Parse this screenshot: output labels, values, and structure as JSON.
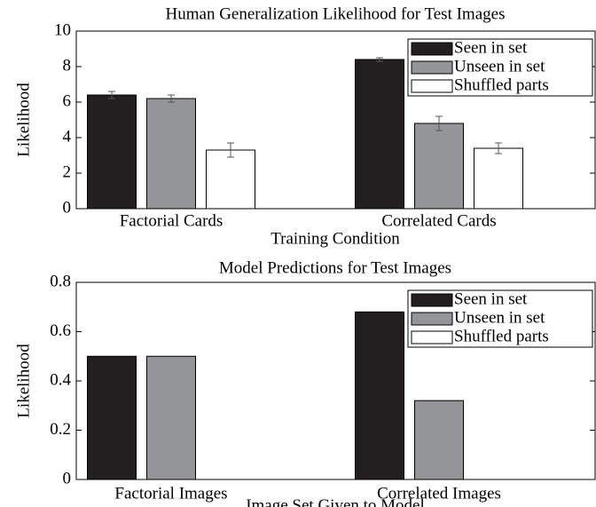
{
  "chart_data": [
    {
      "type": "bar",
      "title": "Human Generalization Likelihood for Test Images",
      "xlabel": "Training Condition",
      "ylabel": "Likelihood",
      "categories": [
        "Factorial Cards",
        "Correlated Cards"
      ],
      "series": [
        {
          "name": "Seen in set",
          "color": "#231f20",
          "values": [
            6.4,
            8.4
          ],
          "errors": [
            0.2,
            0.1
          ]
        },
        {
          "name": "Unseen in set",
          "color": "#939598",
          "values": [
            6.2,
            4.8
          ],
          "errors": [
            0.2,
            0.4
          ]
        },
        {
          "name": "Shuffled parts",
          "color": "#ffffff",
          "values": [
            3.3,
            3.4
          ],
          "errors": [
            0.4,
            0.3
          ]
        }
      ],
      "ylim": [
        0,
        10
      ],
      "yticks": [
        0,
        2,
        4,
        6,
        8,
        10
      ],
      "legend": "upper right"
    },
    {
      "type": "bar",
      "title": "Model Predictions for Test Images",
      "xlabel": "Image Set Given to Model",
      "ylabel": "Likelihood",
      "categories": [
        "Factorial Images",
        "Correlated Images"
      ],
      "series": [
        {
          "name": "Seen in set",
          "color": "#231f20",
          "values": [
            0.5,
            0.68
          ]
        },
        {
          "name": "Unseen in set",
          "color": "#939598",
          "values": [
            0.5,
            0.32
          ]
        },
        {
          "name": "Shuffled parts",
          "color": "#ffffff",
          "values": [
            0,
            0
          ]
        }
      ],
      "ylim": [
        0,
        0.8
      ],
      "yticks": [
        0,
        0.2,
        0.4,
        0.6,
        0.8
      ],
      "legend": "upper right"
    }
  ]
}
